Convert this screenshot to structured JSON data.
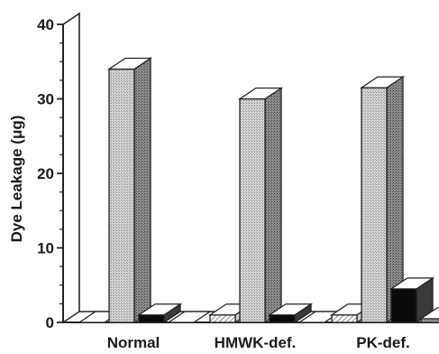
{
  "chart_data": {
    "type": "bar",
    "style": "3d",
    "ylabel": "Dye Leakage (μg)",
    "ylim": [
      0,
      40
    ],
    "yticks": [
      0,
      10,
      20,
      30,
      40
    ],
    "grid": false,
    "categories": [
      "Normal",
      "HMWK-def.",
      "PK-def."
    ],
    "series": [
      {
        "values": [
          0,
          1,
          1
        ],
        "fill": "hatched"
      },
      {
        "values": [
          34,
          30,
          31.5
        ],
        "fill": "light-stipple"
      },
      {
        "values": [
          1,
          1,
          4.5
        ],
        "fill": "black"
      },
      {
        "values": [
          0,
          0,
          0.5
        ],
        "fill": "dark-stipple"
      }
    ]
  }
}
